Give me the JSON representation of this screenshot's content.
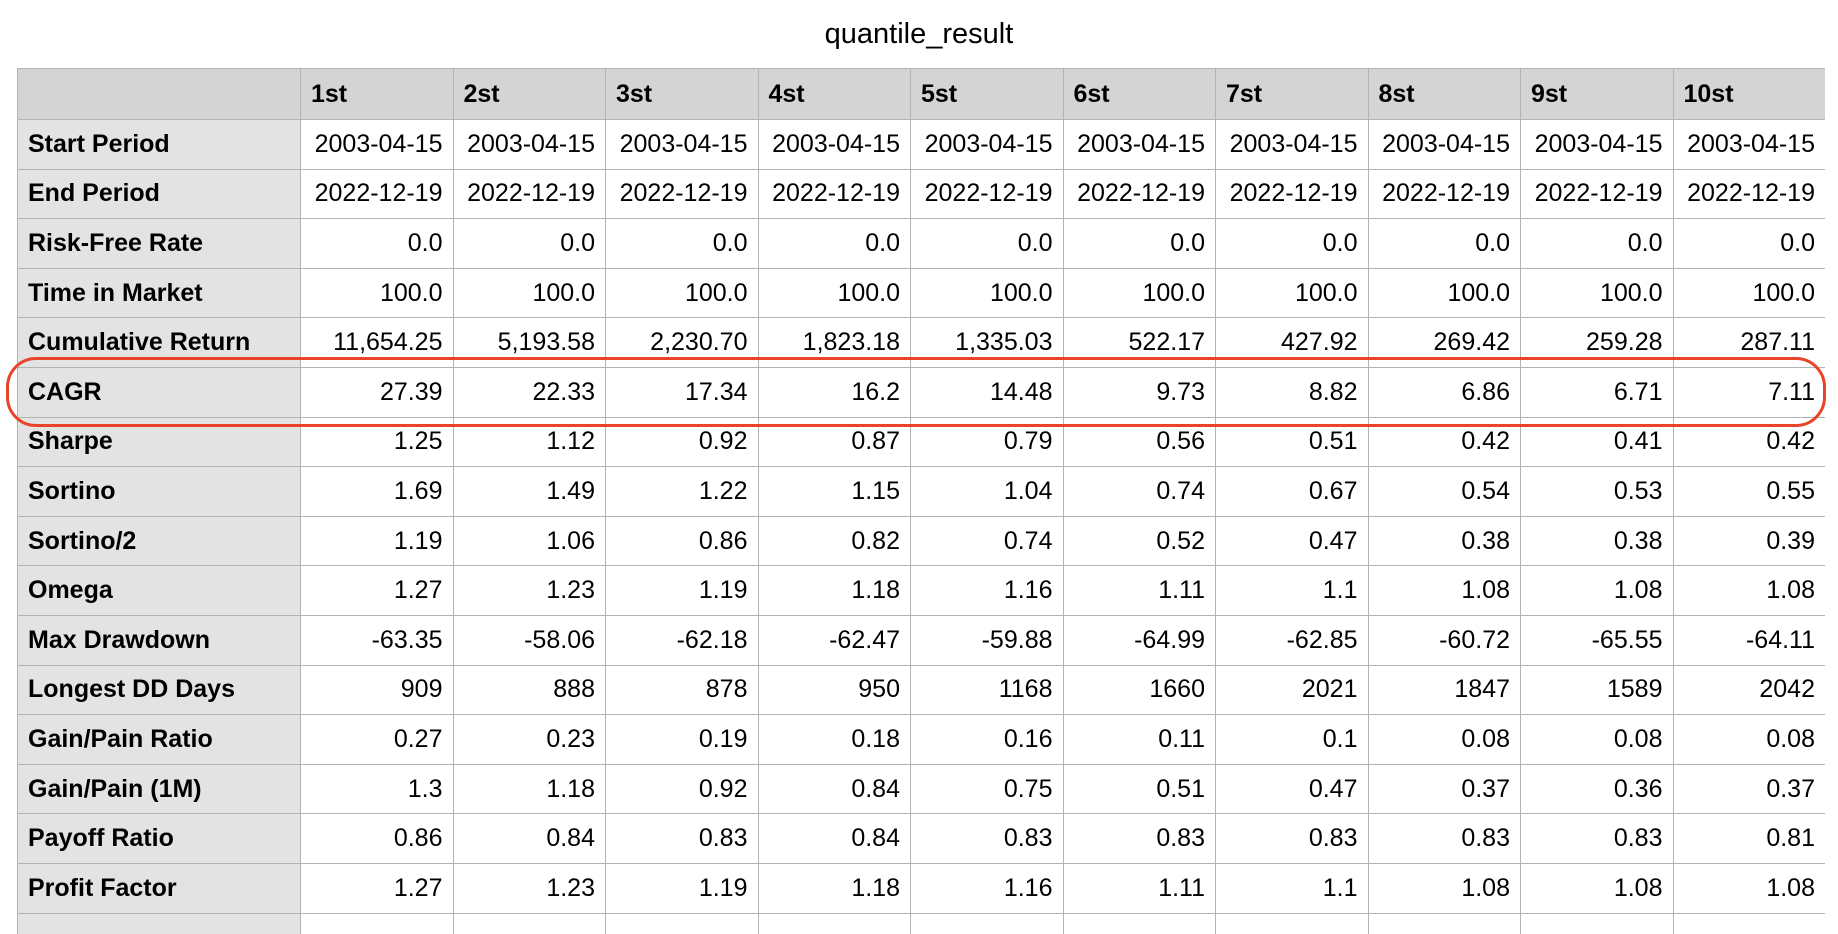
{
  "title": "quantile_result",
  "columns": [
    "1st",
    "2st",
    "3st",
    "4st",
    "5st",
    "6st",
    "7st",
    "8st",
    "9st",
    "10st"
  ],
  "rows": [
    {
      "label": "Start Period",
      "values": [
        "2003-04-15",
        "2003-04-15",
        "2003-04-15",
        "2003-04-15",
        "2003-04-15",
        "2003-04-15",
        "2003-04-15",
        "2003-04-15",
        "2003-04-15",
        "2003-04-15"
      ]
    },
    {
      "label": "End Period",
      "values": [
        "2022-12-19",
        "2022-12-19",
        "2022-12-19",
        "2022-12-19",
        "2022-12-19",
        "2022-12-19",
        "2022-12-19",
        "2022-12-19",
        "2022-12-19",
        "2022-12-19"
      ]
    },
    {
      "label": "Risk-Free Rate",
      "values": [
        "0.0",
        "0.0",
        "0.0",
        "0.0",
        "0.0",
        "0.0",
        "0.0",
        "0.0",
        "0.0",
        "0.0"
      ]
    },
    {
      "label": "Time in Market",
      "values": [
        "100.0",
        "100.0",
        "100.0",
        "100.0",
        "100.0",
        "100.0",
        "100.0",
        "100.0",
        "100.0",
        "100.0"
      ]
    },
    {
      "label": "Cumulative Return",
      "values": [
        "11,654.25",
        "5,193.58",
        "2,230.70",
        "1,823.18",
        "1,335.03",
        "522.17",
        "427.92",
        "269.42",
        "259.28",
        "287.11"
      ]
    },
    {
      "label": "CAGR",
      "values": [
        "27.39",
        "22.33",
        "17.34",
        "16.2",
        "14.48",
        "9.73",
        "8.82",
        "6.86",
        "6.71",
        "7.11"
      ]
    },
    {
      "label": "Sharpe",
      "values": [
        "1.25",
        "1.12",
        "0.92",
        "0.87",
        "0.79",
        "0.56",
        "0.51",
        "0.42",
        "0.41",
        "0.42"
      ]
    },
    {
      "label": "Sortino",
      "values": [
        "1.69",
        "1.49",
        "1.22",
        "1.15",
        "1.04",
        "0.74",
        "0.67",
        "0.54",
        "0.53",
        "0.55"
      ]
    },
    {
      "label": "Sortino/2",
      "values": [
        "1.19",
        "1.06",
        "0.86",
        "0.82",
        "0.74",
        "0.52",
        "0.47",
        "0.38",
        "0.38",
        "0.39"
      ]
    },
    {
      "label": "Omega",
      "values": [
        "1.27",
        "1.23",
        "1.19",
        "1.18",
        "1.16",
        "1.11",
        "1.1",
        "1.08",
        "1.08",
        "1.08"
      ]
    },
    {
      "label": "Max Drawdown",
      "values": [
        "-63.35",
        "-58.06",
        "-62.18",
        "-62.47",
        "-59.88",
        "-64.99",
        "-62.85",
        "-60.72",
        "-65.55",
        "-64.11"
      ]
    },
    {
      "label": "Longest DD Days",
      "values": [
        "909",
        "888",
        "878",
        "950",
        "1168",
        "1660",
        "2021",
        "1847",
        "1589",
        "2042"
      ]
    },
    {
      "label": "Gain/Pain Ratio",
      "values": [
        "0.27",
        "0.23",
        "0.19",
        "0.18",
        "0.16",
        "0.11",
        "0.1",
        "0.08",
        "0.08",
        "0.08"
      ]
    },
    {
      "label": "Gain/Pain (1M)",
      "values": [
        "1.3",
        "1.18",
        "0.92",
        "0.84",
        "0.75",
        "0.51",
        "0.47",
        "0.37",
        "0.36",
        "0.37"
      ]
    },
    {
      "label": "Payoff Ratio",
      "values": [
        "0.86",
        "0.84",
        "0.83",
        "0.84",
        "0.83",
        "0.83",
        "0.83",
        "0.83",
        "0.83",
        "0.81"
      ]
    },
    {
      "label": "Profit Factor",
      "values": [
        "1.27",
        "1.23",
        "1.19",
        "1.18",
        "1.16",
        "1.11",
        "1.1",
        "1.08",
        "1.08",
        "1.08"
      ]
    }
  ],
  "highlighted_row": "CAGR",
  "colors": {
    "header_bg": "#d4d4d4",
    "row_header_bg": "#e3e3e3",
    "grid_line": "#b3b3b3",
    "highlight_ring": "#e8442a"
  }
}
